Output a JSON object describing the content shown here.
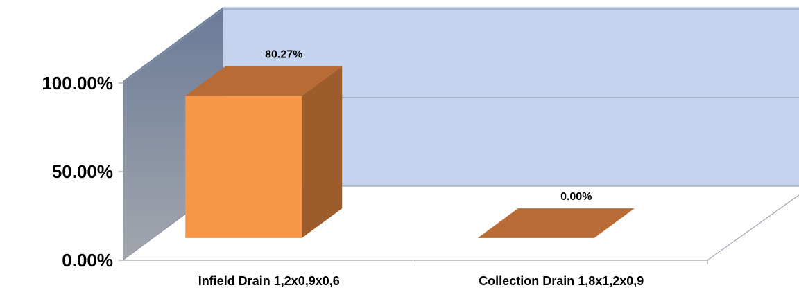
{
  "chart_data": {
    "type": "bar",
    "style": "3d-column",
    "categories": [
      "Infield Drain 1,2x0,9x0,6",
      "Collection Drain 1,8x1,2x0,9"
    ],
    "values": [
      80.27,
      0.0
    ],
    "value_labels": [
      "80.27%",
      "0.00%"
    ],
    "y_ticks": [
      "0.00%",
      "50.00%",
      "100.00%"
    ],
    "ylim": [
      0,
      100
    ],
    "title": "",
    "xlabel": "",
    "ylabel": "",
    "grid": true,
    "legend": "none",
    "colors": {
      "back_wall": "#c5d4ee",
      "side_wall_top": "#6a7b98",
      "side_wall_bottom": "#a3a6ad",
      "bar_front": "#f79646",
      "bar_side": "#9c5c2b",
      "bar_top": "#b86b34",
      "gridline": "#8a93a6"
    }
  }
}
